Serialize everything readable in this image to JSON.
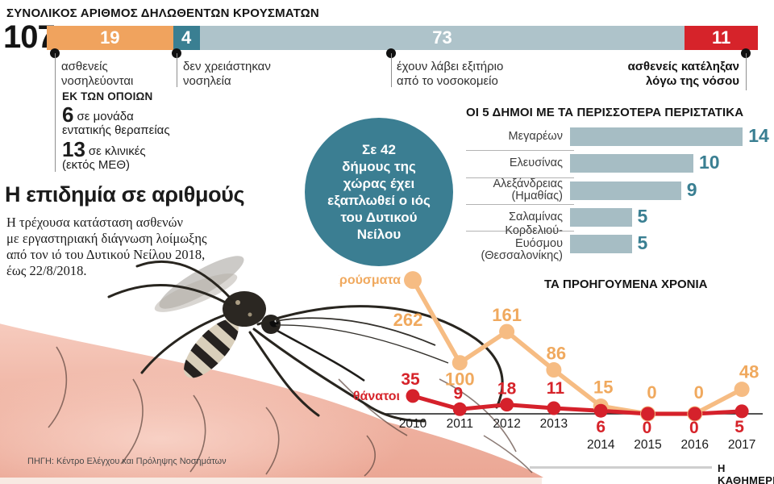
{
  "colors": {
    "orange": "#F0A35E",
    "teal": "#3A7F92",
    "grayblue": "#AEC3CA",
    "red": "#D6232A",
    "orange_line": "#F6BC83",
    "orange_text": "#F0A95E",
    "red_line": "#D5212B",
    "muni_bar": "#A6BDC4",
    "muni_value": "#3A7F92",
    "circle": "#3B7E92"
  },
  "stacked_bar": {
    "title": "ΣΥΝΟΛΙΚΟΣ ΑΡΙΘΜΟΣ ΔΗΛΩΘΕΝΤΩΝ ΚΡΟΥΣΜΑΤΩΝ",
    "total_label": "107",
    "total": 107,
    "segments": [
      {
        "value": 19,
        "color_key": "orange",
        "label_lines": [
          "ασθενείς",
          "νοσηλεύονται"
        ],
        "bold": false
      },
      {
        "value": 4,
        "color_key": "teal",
        "label_lines": [
          "δεν χρειάστηκαν",
          "νοσηλεία"
        ],
        "bold": false
      },
      {
        "value": 73,
        "color_key": "grayblue",
        "label_lines": [
          "έχουν λάβει εξιτήριο",
          "από το νοσοκομείο"
        ],
        "bold": false
      },
      {
        "value": 11,
        "color_key": "red",
        "label_lines": [
          "ασθενείς κατέληξαν",
          "λόγω της νόσου"
        ],
        "bold": true
      }
    ],
    "breakdown": {
      "heading": "ΕΚ ΤΩΝ ΟΠΟΙΩΝ",
      "items": [
        {
          "number": "6",
          "rest": "σε μονάδα",
          "line2": "εντατικής θεραπείας"
        },
        {
          "number": "13",
          "rest": "σε κλινικές",
          "line2": "(εκτός ΜΕΘ)"
        }
      ]
    }
  },
  "intro": {
    "title": "Η επιδημία σε αριθμούς",
    "body_lines": [
      "Η τρέχουσα κατάσταση ασθενών",
      "με εργαστηριακή διάγνωση λοίμωξης",
      "από τον ιό του Δυτικού Νείλου 2018,",
      "έως 22/8/2018."
    ]
  },
  "circle_callout": {
    "lines": [
      "Σε 42",
      "δήμους της",
      "χώρας έχει",
      "εξαπλωθεί ο ιός",
      "του Δυτικού",
      "Νείλου"
    ]
  },
  "chart_data": [
    {
      "id": "patient-status",
      "type": "bar",
      "subtype": "stacked-horizontal",
      "title": "ΣΥΝΟΛΙΚΟΣ ΑΡΙΘΜΟΣ ΔΗΛΩΘΕΝΤΩΝ ΚΡΟΥΣΜΑΤΩΝ",
      "total": 107,
      "categories": [
        "ασθενείς νοσηλεύονται",
        "δεν χρειάστηκαν νοσηλεία",
        "έχουν λάβει εξιτήριο από το νοσοκομείο",
        "ασθενείς κατέληξαν λόγω της νόσου"
      ],
      "values": [
        19,
        4,
        73,
        11
      ],
      "breakdown_of_hospitalized": {
        "σε μονάδα εντατικής θεραπείας": 6,
        "σε κλινικές (εκτός ΜΕΘ)": 13
      }
    },
    {
      "id": "top-municipalities",
      "type": "bar",
      "orientation": "horizontal",
      "title": "ΟΙ 5 ΔΗΜΟΙ ΜΕ ΤΑ ΠΕΡΙΣΣΟΤΕΡΑ ΠΕΡΙΣΤΑΤΙΚΑ",
      "categories": [
        "Μεγαρέων",
        "Ελευσίνας",
        "Αλεξάνδρειας (Ημαθίας)",
        "Σαλαμίνας",
        "Κορδελιού-Ευόσμου (Θεσσαλονίκης)"
      ],
      "category_lines": [
        [
          "Μεγαρέων"
        ],
        [
          "Ελευσίνας"
        ],
        [
          "Αλεξάνδρειας",
          "(Ημαθίας)"
        ],
        [
          "Σαλαμίνας"
        ],
        [
          "Κορδελιού-Ευόσμου",
          "(Θεσσαλονίκης)"
        ]
      ],
      "values": [
        14,
        10,
        9,
        5,
        5
      ],
      "xlim": [
        0,
        15
      ],
      "grid": false
    },
    {
      "id": "previous-years",
      "type": "line",
      "title": "ΤΑ ΠΡΟΗΓΟΥΜΕΝΑ ΧΡΟΝΙΑ",
      "x": [
        2010,
        2011,
        2012,
        2013,
        2014,
        2015,
        2016,
        2017
      ],
      "series": [
        {
          "name": "Κρούσματα",
          "values": [
            262,
            100,
            161,
            86,
            15,
            0,
            0,
            48
          ]
        },
        {
          "name": "θάνατοι",
          "values": [
            35,
            9,
            18,
            11,
            6,
            0,
            0,
            5
          ]
        }
      ],
      "ylim": [
        0,
        290
      ],
      "grid": false,
      "legend": "inline-labels"
    }
  ],
  "footer": {
    "source": "ΠΗΓΗ: Κέντρο Ελέγχου και Πρόληψης Νοσημάτων",
    "brand": "Η ΚΑΘΗΜΕΡΙΝΗ"
  }
}
